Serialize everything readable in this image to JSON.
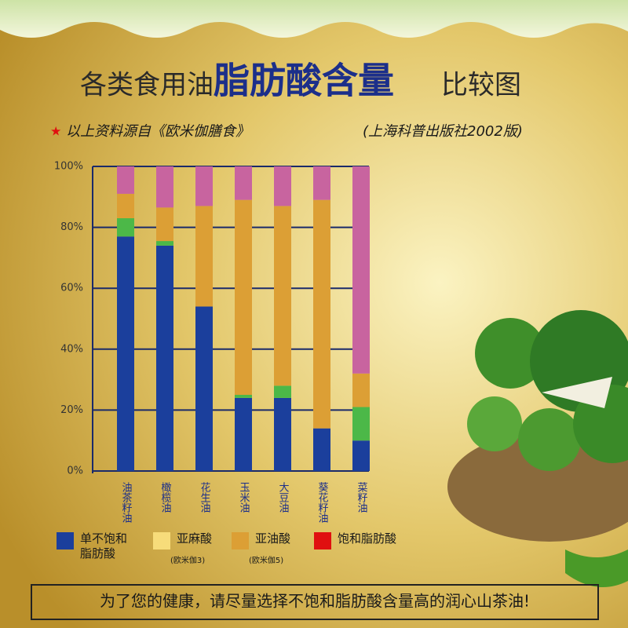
{
  "chart_data": {
    "type": "stacked_bar",
    "title_prefix": "各类食用油",
    "title_emphasis": "脂肪酸含量",
    "title_suffix": "比较图",
    "source": "以上资料源自《欧米伽膳食》",
    "publisher": "(上海科普出版社2002版)",
    "categories": [
      "油茶籽油",
      "橄榄油",
      "花生油",
      "玉米油",
      "大豆油",
      "葵花籽油",
      "菜籽油"
    ],
    "series": [
      {
        "name": "单不饱和脂肪酸",
        "color": "#1b3f9c",
        "swatch": "#1b3f9c",
        "values": [
          77,
          74,
          54,
          24,
          24,
          14,
          10
        ]
      },
      {
        "name": "亚麻酸",
        "note": "(欧米伽3)",
        "color": "#4cb848",
        "swatch": "#f7dc7a",
        "values": [
          6,
          1.5,
          0,
          1,
          4,
          0,
          11
        ]
      },
      {
        "name": "亚油酸",
        "note": "(欧米伽5)",
        "color": "#dc9f35",
        "swatch": "#dc9f35",
        "values": [
          8,
          11,
          33,
          64,
          59,
          75,
          11
        ]
      },
      {
        "name": "饱和脂肪酸",
        "color": "#c8649f",
        "swatch": "#e01010",
        "values": [
          9,
          13.5,
          13,
          11,
          13,
          11,
          68
        ]
      }
    ],
    "ylim": [
      0,
      100
    ],
    "yticks": [
      {
        "value": 0,
        "label": "0%"
      },
      {
        "value": 20,
        "label": "20%"
      },
      {
        "value": 40,
        "label": "40%"
      },
      {
        "value": 60,
        "label": "60%"
      },
      {
        "value": 80,
        "label": "80%"
      },
      {
        "value": 100,
        "label": "100%"
      }
    ],
    "grid": true,
    "footer": "为了您的健康，请尽量选择不饱和脂肪酸含量高的润心山茶油!"
  }
}
